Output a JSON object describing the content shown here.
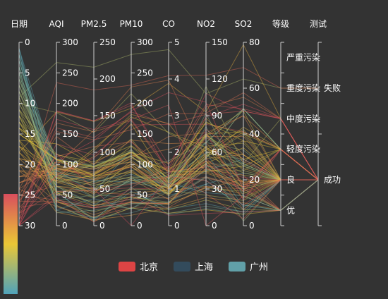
{
  "chart_data": {
    "type": "parallel",
    "title": "",
    "axes": [
      {
        "name": "日期",
        "min": 0,
        "max": 30,
        "inverse": true,
        "ticks": [
          0,
          5,
          10,
          15,
          20,
          25,
          30
        ]
      },
      {
        "name": "AQI",
        "min": 0,
        "max": 300,
        "ticks": [
          0,
          50,
          100,
          150,
          200,
          250,
          300
        ]
      },
      {
        "name": "PM2.5",
        "min": 0,
        "max": 250,
        "ticks": [
          0,
          50,
          100,
          150,
          200,
          250
        ]
      },
      {
        "name": "PM10",
        "min": 0,
        "max": 300,
        "ticks": [
          0,
          50,
          100,
          150,
          200,
          250,
          300
        ]
      },
      {
        "name": "CO",
        "min": 0,
        "max": 5,
        "ticks": [
          0,
          1,
          2,
          3,
          4,
          5
        ]
      },
      {
        "name": "NO2",
        "min": 0,
        "max": 150,
        "ticks": [
          0,
          30,
          60,
          90,
          120,
          150
        ]
      },
      {
        "name": "SO2",
        "min": 0,
        "max": 80,
        "ticks": [
          0,
          20,
          40,
          60,
          80
        ]
      },
      {
        "name": "等级",
        "type": "category",
        "categories": [
          "优",
          "良",
          "轻度污染",
          "中度污染",
          "重度污染",
          "严重污染"
        ]
      },
      {
        "name": "测试",
        "type": "category",
        "categories": [
          "成功",
          "失败"
        ]
      }
    ],
    "series": [
      {
        "name": "北京",
        "color": "#dd4444",
        "values": [
          [
            1,
            55,
            9,
            56,
            0.46,
            18,
            6,
            "良",
            "成功"
          ],
          [
            2,
            25,
            11,
            21,
            0.65,
            34,
            9,
            "优",
            "成功"
          ],
          [
            3,
            56,
            7,
            63,
            0.3,
            14,
            5,
            "良",
            "成功"
          ],
          [
            4,
            33,
            7,
            29,
            0.33,
            16,
            6,
            "优",
            "成功"
          ],
          [
            5,
            42,
            24,
            44,
            0.76,
            40,
            16,
            "优",
            "成功"
          ],
          [
            6,
            82,
            58,
            90,
            1.77,
            68,
            33,
            "良",
            "成功"
          ],
          [
            7,
            74,
            49,
            77,
            1.46,
            48,
            27,
            "良",
            "成功"
          ],
          [
            8,
            78,
            55,
            80,
            1.29,
            59,
            29,
            "良",
            "成功"
          ],
          [
            9,
            267,
            216,
            280,
            4.8,
            108,
            64,
            "重度污染",
            "失败"
          ],
          [
            10,
            185,
            127,
            216,
            2.52,
            61,
            27,
            "中度污染",
            "成功"
          ],
          [
            11,
            39,
            19,
            38,
            0.57,
            31,
            15,
            "优",
            "成功"
          ],
          [
            12,
            41,
            11,
            40,
            0.43,
            21,
            7,
            "优",
            "成功"
          ],
          [
            13,
            64,
            38,
            74,
            1.04,
            46,
            22,
            "良",
            "成功"
          ],
          [
            14,
            108,
            79,
            120,
            1.7,
            75,
            41,
            "轻度污染",
            "成功"
          ],
          [
            15,
            108,
            63,
            116,
            1.48,
            44,
            26,
            "轻度污染",
            "成功"
          ],
          [
            16,
            33,
            6,
            29,
            0.34,
            13,
            5,
            "优",
            "成功"
          ],
          [
            17,
            94,
            66,
            110,
            1.54,
            62,
            31,
            "良",
            "成功"
          ],
          [
            18,
            186,
            142,
            192,
            3.88,
            93,
            79,
            "中度污染",
            "成功"
          ],
          [
            19,
            57,
            31,
            54,
            0.96,
            32,
            14,
            "良",
            "成功"
          ],
          [
            20,
            22,
            8,
            17,
            0.48,
            23,
            10,
            "优",
            "成功"
          ],
          [
            21,
            39,
            15,
            36,
            0.61,
            29,
            13,
            "优",
            "成功"
          ],
          [
            22,
            94,
            69,
            114,
            2.08,
            73,
            39,
            "良",
            "成功"
          ],
          [
            23,
            99,
            73,
            110,
            2.43,
            76,
            48,
            "良",
            "成功"
          ],
          [
            24,
            31,
            12,
            30,
            0.5,
            32,
            16,
            "优",
            "成功"
          ],
          [
            25,
            42,
            27,
            43,
            1,
            53,
            22,
            "优",
            "成功"
          ],
          [
            26,
            154,
            117,
            157,
            3.05,
            92,
            58,
            "中度污染",
            "成功"
          ],
          [
            27,
            234,
            185,
            230,
            4.09,
            123,
            69,
            "重度污染",
            "失败"
          ],
          [
            28,
            160,
            120,
            186,
            2.77,
            91,
            50,
            "中度污染",
            "成功"
          ],
          [
            29,
            134,
            96,
            165,
            2.76,
            83,
            41,
            "轻度污染",
            "成功"
          ],
          [
            30,
            52,
            24,
            60,
            1.03,
            50,
            21,
            "良",
            "成功"
          ],
          [
            31,
            46,
            5,
            49,
            0.28,
            10,
            6,
            "优",
            "成功"
          ]
        ]
      },
      {
        "name": "上海",
        "color": "#334b5c",
        "values": [
          [
            1,
            91,
            45,
            125,
            0.82,
            34,
            23,
            "良",
            "成功"
          ],
          [
            2,
            65,
            27,
            78,
            0.86,
            45,
            29,
            "良",
            "成功"
          ],
          [
            3,
            83,
            60,
            84,
            1.09,
            73,
            27,
            "良",
            "成功"
          ],
          [
            4,
            109,
            81,
            121,
            1.28,
            68,
            51,
            "轻度污染",
            "成功"
          ],
          [
            5,
            106,
            77,
            114,
            1.07,
            55,
            51,
            "轻度污染",
            "成功"
          ],
          [
            6,
            109,
            81,
            121,
            1.28,
            68,
            51,
            "轻度污染",
            "成功"
          ],
          [
            7,
            106,
            77,
            114,
            1.07,
            55,
            51,
            "轻度污染",
            "成功"
          ],
          [
            8,
            89,
            65,
            78,
            0.86,
            51,
            26,
            "良",
            "成功"
          ],
          [
            9,
            53,
            33,
            47,
            0.64,
            50,
            17,
            "良",
            "成功"
          ],
          [
            10,
            80,
            55,
            80,
            1.01,
            75,
            24,
            "良",
            "成功"
          ],
          [
            11,
            117,
            81,
            124,
            1.03,
            45,
            24,
            "轻度污染",
            "成功"
          ],
          [
            12,
            99,
            71,
            142,
            1.1,
            62,
            42,
            "良",
            "成功"
          ],
          [
            13,
            95,
            69,
            130,
            1.28,
            74,
            50,
            "良",
            "成功"
          ],
          [
            14,
            116,
            87,
            131,
            1.47,
            84,
            40,
            "轻度污染",
            "成功"
          ],
          [
            15,
            108,
            80,
            121,
            1.3,
            85,
            37,
            "轻度污染",
            "成功"
          ],
          [
            16,
            134,
            83,
            167,
            1.16,
            57,
            43,
            "轻度污染",
            "成功"
          ],
          [
            17,
            79,
            43,
            107,
            1.05,
            59,
            37,
            "良",
            "成功"
          ],
          [
            18,
            71,
            46,
            89,
            0.86,
            64,
            25,
            "良",
            "成功"
          ],
          [
            19,
            97,
            71,
            113,
            1.17,
            88,
            31,
            "良",
            "成功"
          ],
          [
            20,
            84,
            57,
            91,
            0.85,
            55,
            31,
            "良",
            "成功"
          ],
          [
            21,
            87,
            63,
            101,
            0.9,
            56,
            41,
            "良",
            "成功"
          ],
          [
            22,
            104,
            77,
            119,
            1.09,
            73,
            48,
            "轻度污染",
            "成功"
          ],
          [
            23,
            87,
            62,
            100,
            1,
            72,
            28,
            "良",
            "成功"
          ],
          [
            24,
            168,
            128,
            172,
            1.49,
            97,
            56,
            "中度污染",
            "成功"
          ],
          [
            25,
            65,
            45,
            51,
            0.74,
            39,
            17,
            "良",
            "成功"
          ],
          [
            26,
            39,
            24,
            38,
            0.61,
            47,
            17,
            "优",
            "成功"
          ],
          [
            27,
            39,
            24,
            39,
            0.59,
            50,
            19,
            "优",
            "成功"
          ],
          [
            28,
            93,
            68,
            96,
            1.05,
            79,
            29,
            "良",
            "成功"
          ],
          [
            29,
            188,
            143,
            197,
            1.66,
            99,
            51,
            "中度污染",
            "成功"
          ],
          [
            30,
            174,
            131,
            174,
            1.55,
            108,
            50,
            "中度污染",
            "成功"
          ],
          [
            31,
            187,
            143,
            201,
            1.39,
            89,
            53,
            "中度污染",
            "成功"
          ]
        ]
      },
      {
        "name": "广州",
        "color": "#61a0a8",
        "values": [
          [
            1,
            26,
            37,
            27,
            1.163,
            27,
            13,
            "优",
            "成功"
          ],
          [
            2,
            85,
            62,
            71,
            1.195,
            60,
            8,
            "良",
            "成功"
          ],
          [
            3,
            78,
            38,
            74,
            1.363,
            37,
            7,
            "良",
            "成功"
          ],
          [
            4,
            21,
            21,
            36,
            0.634,
            40,
            9,
            "优",
            "成功"
          ],
          [
            5,
            41,
            42,
            46,
            0.915,
            81,
            13,
            "优",
            "成功"
          ],
          [
            6,
            56,
            52,
            69,
            1.067,
            92,
            16,
            "良",
            "成功"
          ],
          [
            7,
            64,
            30,
            28,
            0.924,
            51,
            2,
            "良",
            "成功"
          ],
          [
            8,
            55,
            48,
            74,
            1.236,
            75,
            26,
            "良",
            "成功"
          ],
          [
            9,
            76,
            85,
            113,
            1.237,
            114,
            27,
            "良",
            "成功"
          ],
          [
            10,
            91,
            81,
            104,
            1.041,
            56,
            40,
            "良",
            "成功"
          ],
          [
            11,
            84,
            39,
            60,
            0.964,
            25,
            11,
            "良",
            "成功"
          ],
          [
            12,
            64,
            51,
            101,
            0.862,
            58,
            23,
            "良",
            "成功"
          ],
          [
            13,
            70,
            69,
            120,
            1.198,
            65,
            36,
            "良",
            "成功"
          ],
          [
            14,
            77,
            105,
            178,
            2.549,
            64,
            16,
            "良",
            "成功"
          ],
          [
            15,
            109,
            68,
            87,
            0.996,
            74,
            29,
            "轻度污染",
            "成功"
          ],
          [
            16,
            73,
            68,
            97,
            0.905,
            51,
            34,
            "良",
            "成功"
          ],
          [
            17,
            54,
            27,
            47,
            0.592,
            53,
            12,
            "良",
            "成功"
          ],
          [
            18,
            51,
            61,
            97,
            0.811,
            65,
            19,
            "良",
            "成功"
          ],
          [
            19,
            91,
            71,
            121,
            1.374,
            43,
            18,
            "良",
            "成功"
          ],
          [
            20,
            73,
            102,
            182,
            2.787,
            44,
            19,
            "良",
            "成功"
          ],
          [
            21,
            73,
            50,
            76,
            0.717,
            31,
            20,
            "良",
            "成功"
          ],
          [
            22,
            84,
            94,
            140,
            2.238,
            68,
            18,
            "良",
            "成功"
          ],
          [
            23,
            93,
            77,
            104,
            1.165,
            53,
            7,
            "良",
            "成功"
          ],
          [
            24,
            99,
            130,
            227,
            3.97,
            55,
            15,
            "良",
            "成功"
          ],
          [
            25,
            146,
            84,
            139,
            1.094,
            40,
            17,
            "轻度污染",
            "成功"
          ],
          [
            26,
            113,
            108,
            137,
            1.481,
            48,
            15,
            "轻度污染",
            "成功"
          ],
          [
            27,
            81,
            48,
            62,
            1.619,
            26,
            3,
            "良",
            "成功"
          ],
          [
            28,
            56,
            48,
            68,
            1.336,
            37,
            9,
            "良",
            "成功"
          ],
          [
            29,
            82,
            92,
            174,
            3.29,
            0,
            13,
            "良",
            "成功"
          ],
          [
            30,
            106,
            116,
            188,
            3.628,
            101,
            16,
            "轻度污染",
            "成功"
          ],
          [
            31,
            118,
            50,
            0,
            1.383,
            76,
            11,
            "轻度污染",
            "成功"
          ]
        ]
      }
    ],
    "legend": {
      "position": "bottom",
      "items": [
        "北京",
        "上海",
        "广州"
      ]
    },
    "visual_map": {
      "dimension": "日期",
      "min": 0,
      "max": 30,
      "colors": [
        "#50a3ba",
        "#eac736",
        "#d94e5d"
      ],
      "position": "bottom-left"
    }
  }
}
